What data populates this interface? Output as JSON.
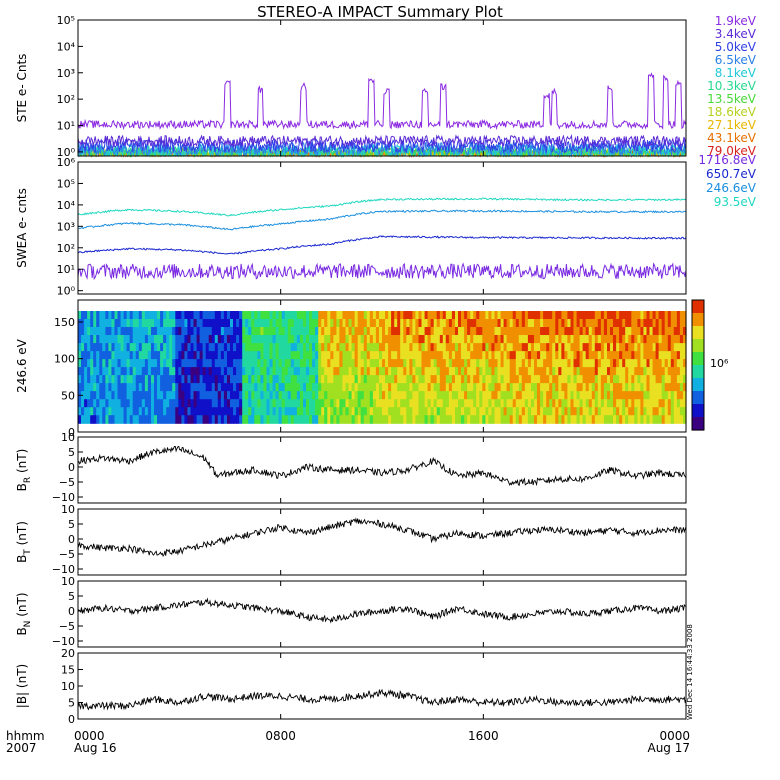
{
  "title": "STEREO-A IMPACT Summary Plot",
  "stamp": "Wed Dec 14 16:44:33 2008",
  "x_axis": {
    "corner_top": "hhmm",
    "corner_bottom": "2007",
    "ticks": [
      {
        "t": 0,
        "label": "0000",
        "sub": "Aug 16"
      },
      {
        "t": 8,
        "label": "0800",
        "sub": ""
      },
      {
        "t": 16,
        "label": "1600",
        "sub": ""
      },
      {
        "t": 24,
        "label": "0000",
        "sub": "Aug 17"
      }
    ],
    "range_hours": [
      0,
      24
    ]
  },
  "colors": {
    "ste": [
      "#8b2be2",
      "#5b2bd6",
      "#2f3fe6",
      "#2a80e8",
      "#22c8d8",
      "#28d890",
      "#48d838",
      "#b8d020",
      "#e8b800",
      "#e87000",
      "#d82020"
    ],
    "swea": [
      "#7a2be2",
      "#1a28d0",
      "#1a8fe0",
      "#20d8c0"
    ],
    "heat_colorbar": [
      "#3a0080",
      "#1010c8",
      "#1060e0",
      "#10b0e0",
      "#20d8a0",
      "#40e040",
      "#a0e020",
      "#e8e020",
      "#f09000",
      "#e03000"
    ]
  },
  "chart_data": [
    {
      "type": "line",
      "panel": "ste",
      "ylabel": "STE e- Cnts",
      "yscale": "log",
      "ylim": [
        0.7,
        100000
      ],
      "ytick_labels": [
        "10⁰",
        "10¹",
        "10²",
        "10³",
        "10⁴",
        "10⁵"
      ],
      "series": [
        {
          "name": "1.9keV",
          "base": 11,
          "noise": 0.15
        },
        {
          "name": "3.4keV",
          "base": 2.6,
          "noise": 0.2
        },
        {
          "name": "5.0keV",
          "base": 1.7,
          "noise": 0.25
        },
        {
          "name": "6.5keV",
          "base": 1.3,
          "noise": 0.25
        },
        {
          "name": "8.1keV",
          "base": 1.1,
          "noise": 0.25
        },
        {
          "name": "10.3keV",
          "base": 1.0,
          "noise": 0.2
        },
        {
          "name": "13.5keV",
          "base": 0.9,
          "noise": 0.2
        },
        {
          "name": "18.6keV",
          "base": 0.85,
          "noise": 0.2
        },
        {
          "name": "27.1keV",
          "base": 0.8,
          "noise": 0.2
        },
        {
          "name": "43.1keV",
          "base": 0.8,
          "noise": 0.2
        },
        {
          "name": "79.0keV",
          "base": 0.8,
          "noise": 0.2
        }
      ],
      "spikes_hours": [
        {
          "t": 5.9,
          "v": 500
        },
        {
          "t": 7.2,
          "v": 300
        },
        {
          "t": 8.9,
          "v": 400
        },
        {
          "t": 11.6,
          "v": 700
        },
        {
          "t": 12.2,
          "v": 250
        },
        {
          "t": 13.7,
          "v": 250
        },
        {
          "t": 14.4,
          "v": 400
        },
        {
          "t": 18.5,
          "v": 200
        },
        {
          "t": 18.8,
          "v": 250
        },
        {
          "t": 21.0,
          "v": 400
        },
        {
          "t": 22.6,
          "v": 1000
        },
        {
          "t": 23.2,
          "v": 800
        },
        {
          "t": 23.7,
          "v": 500
        }
      ]
    },
    {
      "type": "line",
      "panel": "swea",
      "ylabel": "SWEA e- cnts",
      "yscale": "log",
      "ylim": [
        0.7,
        1000000
      ],
      "ytick_labels": [
        "10⁰",
        "10¹",
        "10²",
        "10³",
        "10⁴",
        "10⁵",
        "10⁶"
      ],
      "series": [
        {
          "name": "1716.8eV",
          "x": [
            0,
            4,
            8,
            12,
            16,
            20,
            24
          ],
          "y": [
            8,
            8,
            8,
            8,
            8,
            8,
            8
          ]
        },
        {
          "name": "650.7eV",
          "x": [
            0,
            2,
            4,
            6,
            8,
            10,
            12,
            16,
            20,
            24
          ],
          "y": [
            60,
            90,
            80,
            50,
            90,
            150,
            330,
            300,
            290,
            280
          ]
        },
        {
          "name": "246.6eV",
          "x": [
            0,
            2,
            4,
            6,
            8,
            10,
            12,
            16,
            20,
            24
          ],
          "y": [
            800,
            1400,
            1200,
            700,
            1300,
            2200,
            5000,
            5200,
            4800,
            4800
          ]
        },
        {
          "name": "93.5eV",
          "x": [
            0,
            2,
            4,
            6,
            8,
            10,
            12,
            16,
            20,
            24
          ],
          "y": [
            3500,
            6000,
            5000,
            3200,
            6000,
            9000,
            18000,
            19000,
            17000,
            17500
          ]
        }
      ]
    },
    {
      "type": "heatmap",
      "panel": "pad",
      "ylabel": "246.6 eV",
      "ylim": [
        0,
        180
      ],
      "ytick_labels": [
        "0",
        "50",
        "100",
        "150"
      ],
      "colorbar_label": "10⁶",
      "level_regions": [
        {
          "t": [
            0,
            3.8
          ],
          "level": 0.3
        },
        {
          "t": [
            3.8,
            6.5
          ],
          "level": 0.15
        },
        {
          "t": [
            6.5,
            9.5
          ],
          "level": 0.45
        },
        {
          "t": [
            9.5,
            12
          ],
          "level": 0.62
        },
        {
          "t": [
            12,
            17
          ],
          "level": 0.68
        },
        {
          "t": [
            17,
            24
          ],
          "level": 0.72
        }
      ]
    },
    {
      "type": "line",
      "panel": "br",
      "ylabel": "BR (nT)",
      "ylim": [
        -12,
        10
      ],
      "ytick_labels": [
        "10",
        "5",
        "0",
        "−5",
        "−10"
      ],
      "series": [
        {
          "name": "BR",
          "x": [
            0,
            1,
            2,
            3,
            4,
            5,
            5.5,
            6,
            7,
            8,
            9,
            10,
            11,
            12,
            13,
            14,
            15,
            16,
            17,
            18,
            19,
            20,
            21,
            22,
            23,
            24
          ],
          "y": [
            2,
            3,
            2,
            5,
            6,
            3,
            -3,
            -2,
            -1,
            -3,
            0,
            -1,
            -1,
            -2,
            -1,
            2,
            -3,
            -2,
            -5,
            -5,
            -4,
            -4,
            -1,
            -3,
            -2,
            -3
          ]
        }
      ]
    },
    {
      "type": "line",
      "panel": "bt",
      "ylabel": "BT (nT)",
      "ylim": [
        -12,
        10
      ],
      "ytick_labels": [
        "10",
        "5",
        "0",
        "−5",
        "−10"
      ],
      "series": [
        {
          "name": "BT",
          "x": [
            0,
            1,
            2,
            3,
            4,
            5,
            6,
            7,
            8,
            9,
            10,
            11,
            12,
            13,
            14,
            15,
            16,
            17,
            18,
            19,
            20,
            21,
            22,
            23,
            24
          ],
          "y": [
            -2,
            -3,
            -3,
            -5,
            -4,
            -2,
            0,
            2,
            4,
            2,
            4,
            6,
            5,
            3,
            0,
            2,
            1,
            2,
            3,
            3,
            2,
            3,
            2,
            3,
            3
          ]
        }
      ]
    },
    {
      "type": "line",
      "panel": "bn",
      "ylabel": "BN (nT)",
      "ylim": [
        -12,
        10
      ],
      "ytick_labels": [
        "10",
        "5",
        "0",
        "−5",
        "−10"
      ],
      "series": [
        {
          "name": "BN",
          "x": [
            0,
            1,
            2,
            3,
            4,
            5,
            6,
            7,
            8,
            9,
            10,
            11,
            12,
            13,
            14,
            15,
            16,
            17,
            18,
            19,
            20,
            21,
            22,
            23,
            24
          ],
          "y": [
            0,
            1,
            0,
            1,
            2,
            3,
            2,
            1,
            0,
            -2,
            -3,
            -1,
            0,
            1,
            -2,
            1,
            -1,
            -2,
            -1,
            0,
            -1,
            0,
            1,
            0,
            1
          ]
        }
      ]
    },
    {
      "type": "line",
      "panel": "bmag",
      "ylabel": "|B| (nT)",
      "ylim": [
        0,
        20
      ],
      "ytick_labels": [
        "20",
        "15",
        "10",
        "5",
        "0"
      ],
      "series": [
        {
          "name": "|B|",
          "x": [
            0,
            1,
            2,
            3,
            4,
            5,
            6,
            7,
            8,
            9,
            10,
            11,
            12,
            13,
            14,
            15,
            16,
            17,
            18,
            19,
            20,
            21,
            22,
            23,
            24
          ],
          "y": [
            4,
            4,
            4,
            6,
            5,
            7,
            6,
            7,
            7,
            6,
            6,
            7,
            8,
            7,
            5,
            6,
            5,
            5,
            6,
            5,
            5,
            5,
            6,
            6,
            6
          ]
        }
      ]
    }
  ],
  "labels": {
    "br_main": "B",
    "br_sub": "R",
    "br_unit": " (nT)",
    "bt_main": "B",
    "bt_sub": "T",
    "bt_unit": " (nT)",
    "bn_main": "B",
    "bn_sub": "N",
    "bn_unit": " (nT)",
    "bmag": "|B| (nT)"
  }
}
